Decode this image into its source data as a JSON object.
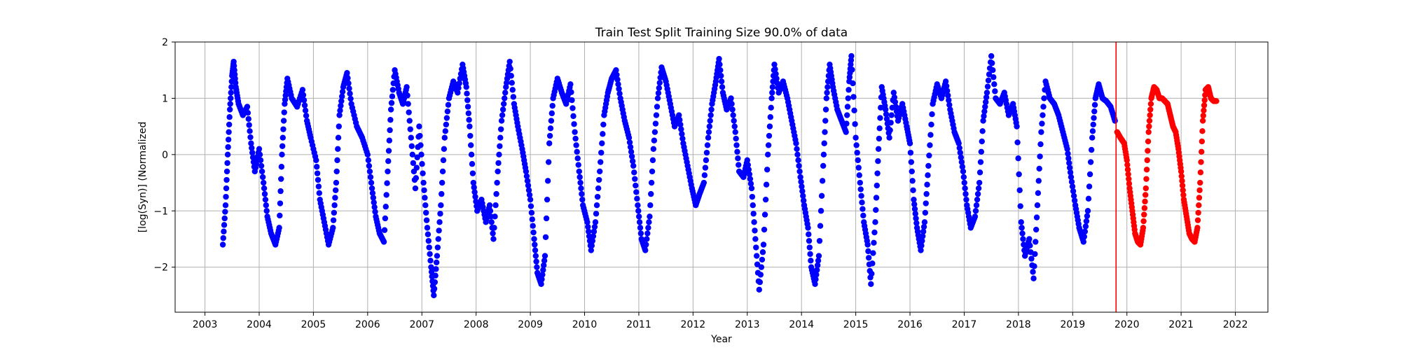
{
  "chart_data": {
    "type": "scatter",
    "title": "Train Test Split Training Size 90.0% of data",
    "xlabel": "Year",
    "ylabel": "[log(Syn)] (Normalized",
    "xlim": [
      2002.45,
      2022.6
    ],
    "ylim": [
      -2.8,
      2.0
    ],
    "grid": true,
    "x_ticks": [
      2003,
      2004,
      2005,
      2006,
      2007,
      2008,
      2009,
      2010,
      2011,
      2012,
      2013,
      2014,
      2015,
      2016,
      2017,
      2018,
      2019,
      2020,
      2021,
      2022
    ],
    "y_ticks": [
      -2,
      -1,
      0,
      1,
      2
    ],
    "split_line": {
      "x": 2019.8,
      "color": "#ff0000"
    },
    "colors": {
      "train": "#0000ff",
      "test": "#ff0000"
    },
    "series": [
      {
        "color": "#0000ff",
        "points": [
          [
            2003.33,
            -1.6
          ],
          [
            2003.38,
            -0.9
          ],
          [
            2003.42,
            0.0
          ],
          [
            2003.46,
            0.8
          ],
          [
            2003.5,
            1.4
          ],
          [
            2003.53,
            1.65
          ],
          [
            2003.57,
            1.2
          ],
          [
            2003.62,
            0.9
          ],
          [
            2003.7,
            0.7
          ],
          [
            2003.78,
            0.85
          ],
          [
            2003.85,
            0.2
          ],
          [
            2003.92,
            -0.3
          ],
          [
            2004.0,
            0.1
          ],
          [
            2004.08,
            -0.5
          ],
          [
            2004.15,
            -1.1
          ],
          [
            2004.22,
            -1.4
          ],
          [
            2004.3,
            -1.6
          ],
          [
            2004.37,
            -1.3
          ],
          [
            2004.42,
            0.0
          ],
          [
            2004.47,
            0.9
          ],
          [
            2004.52,
            1.35
          ],
          [
            2004.6,
            1.0
          ],
          [
            2004.7,
            0.85
          ],
          [
            2004.8,
            1.15
          ],
          [
            2004.88,
            0.6
          ],
          [
            2004.95,
            0.3
          ],
          [
            2005.05,
            -0.1
          ],
          [
            2005.12,
            -0.8
          ],
          [
            2005.2,
            -1.2
          ],
          [
            2005.28,
            -1.6
          ],
          [
            2005.36,
            -1.3
          ],
          [
            2005.42,
            -0.5
          ],
          [
            2005.48,
            0.7
          ],
          [
            2005.55,
            1.2
          ],
          [
            2005.62,
            1.45
          ],
          [
            2005.7,
            0.9
          ],
          [
            2005.8,
            0.5
          ],
          [
            2005.9,
            0.3
          ],
          [
            2006.0,
            0.0
          ],
          [
            2006.08,
            -0.6
          ],
          [
            2006.15,
            -1.1
          ],
          [
            2006.22,
            -1.4
          ],
          [
            2006.3,
            -1.55
          ],
          [
            2006.37,
            -0.3
          ],
          [
            2006.43,
            0.8
          ],
          [
            2006.5,
            1.5
          ],
          [
            2006.58,
            1.1
          ],
          [
            2006.65,
            0.9
          ],
          [
            2006.72,
            1.2
          ],
          [
            2006.8,
            0.3
          ],
          [
            2006.88,
            -0.6
          ],
          [
            2006.95,
            0.5
          ],
          [
            2007.03,
            -0.5
          ],
          [
            2007.1,
            -1.3
          ],
          [
            2007.17,
            -2.0
          ],
          [
            2007.22,
            -2.5
          ],
          [
            2007.28,
            -1.8
          ],
          [
            2007.35,
            -0.9
          ],
          [
            2007.42,
            0.3
          ],
          [
            2007.5,
            1.0
          ],
          [
            2007.58,
            1.3
          ],
          [
            2007.66,
            1.1
          ],
          [
            2007.75,
            1.6
          ],
          [
            2007.82,
            1.2
          ],
          [
            2007.88,
            0.5
          ],
          [
            2007.95,
            -0.5
          ],
          [
            2008.02,
            -1.0
          ],
          [
            2008.1,
            -0.8
          ],
          [
            2008.18,
            -1.2
          ],
          [
            2008.25,
            -0.9
          ],
          [
            2008.32,
            -1.5
          ],
          [
            2008.4,
            -0.3
          ],
          [
            2008.47,
            0.6
          ],
          [
            2008.55,
            1.2
          ],
          [
            2008.62,
            1.65
          ],
          [
            2008.7,
            0.9
          ],
          [
            2008.77,
            0.5
          ],
          [
            2008.85,
            0.1
          ],
          [
            2008.92,
            -0.3
          ],
          [
            2009.0,
            -0.8
          ],
          [
            2009.07,
            -1.5
          ],
          [
            2009.13,
            -2.1
          ],
          [
            2009.2,
            -2.3
          ],
          [
            2009.27,
            -1.8
          ],
          [
            2009.35,
            0.2
          ],
          [
            2009.42,
            1.0
          ],
          [
            2009.5,
            1.35
          ],
          [
            2009.58,
            1.1
          ],
          [
            2009.66,
            0.9
          ],
          [
            2009.74,
            1.25
          ],
          [
            2009.82,
            0.4
          ],
          [
            2009.9,
            -0.3
          ],
          [
            2009.97,
            -0.9
          ],
          [
            2010.05,
            -1.2
          ],
          [
            2010.12,
            -1.7
          ],
          [
            2010.2,
            -1.2
          ],
          [
            2010.28,
            -0.3
          ],
          [
            2010.36,
            0.7
          ],
          [
            2010.43,
            1.1
          ],
          [
            2010.5,
            1.35
          ],
          [
            2010.58,
            1.5
          ],
          [
            2010.66,
            1.0
          ],
          [
            2010.74,
            0.6
          ],
          [
            2010.82,
            0.3
          ],
          [
            2010.9,
            -0.2
          ],
          [
            2010.98,
            -0.9
          ],
          [
            2011.05,
            -1.5
          ],
          [
            2011.12,
            -1.7
          ],
          [
            2011.2,
            -1.1
          ],
          [
            2011.27,
            0.1
          ],
          [
            2011.35,
            1.0
          ],
          [
            2011.42,
            1.55
          ],
          [
            2011.5,
            1.3
          ],
          [
            2011.58,
            0.9
          ],
          [
            2011.66,
            0.5
          ],
          [
            2011.74,
            0.7
          ],
          [
            2011.82,
            0.2
          ],
          [
            2011.9,
            -0.2
          ],
          [
            2011.98,
            -0.6
          ],
          [
            2012.05,
            -0.9
          ],
          [
            2012.12,
            -0.7
          ],
          [
            2012.2,
            -0.5
          ],
          [
            2012.28,
            0.3
          ],
          [
            2012.35,
            0.9
          ],
          [
            2012.42,
            1.3
          ],
          [
            2012.48,
            1.7
          ],
          [
            2012.55,
            1.1
          ],
          [
            2012.62,
            0.8
          ],
          [
            2012.7,
            1.0
          ],
          [
            2012.78,
            0.4
          ],
          [
            2012.85,
            -0.3
          ],
          [
            2012.93,
            -0.4
          ],
          [
            2013.0,
            -0.1
          ],
          [
            2013.08,
            -0.6
          ],
          [
            2013.15,
            -1.5
          ],
          [
            2013.22,
            -2.4
          ],
          [
            2013.3,
            -1.6
          ],
          [
            2013.38,
            0.0
          ],
          [
            2013.45,
            1.0
          ],
          [
            2013.5,
            1.6
          ],
          [
            2013.58,
            1.1
          ],
          [
            2013.66,
            1.3
          ],
          [
            2013.74,
            1.0
          ],
          [
            2013.82,
            0.6
          ],
          [
            2013.9,
            0.2
          ],
          [
            2013.98,
            -0.4
          ],
          [
            2014.05,
            -0.9
          ],
          [
            2014.12,
            -1.3
          ],
          [
            2014.18,
            -2.0
          ],
          [
            2014.25,
            -2.3
          ],
          [
            2014.32,
            -1.8
          ],
          [
            2014.4,
            -0.2
          ],
          [
            2014.46,
            1.0
          ],
          [
            2014.52,
            1.6
          ],
          [
            2014.58,
            1.2
          ],
          [
            2014.66,
            0.8
          ],
          [
            2014.74,
            0.6
          ],
          [
            2014.82,
            0.4
          ],
          [
            2014.88,
            1.3
          ],
          [
            2014.92,
            1.75
          ],
          [
            2015.0,
            0.3
          ],
          [
            2015.08,
            -0.5
          ],
          [
            2015.15,
            -1.2
          ],
          [
            2015.22,
            -1.6
          ],
          [
            2015.28,
            -2.3
          ],
          [
            2015.36,
            -1.2
          ],
          [
            2015.42,
            0.1
          ],
          [
            2015.48,
            1.2
          ],
          [
            2015.55,
            0.8
          ],
          [
            2015.62,
            0.3
          ],
          [
            2015.7,
            1.1
          ],
          [
            2015.78,
            0.6
          ],
          [
            2015.86,
            0.9
          ],
          [
            2015.94,
            0.5
          ],
          [
            2016.0,
            0.2
          ],
          [
            2016.07,
            -0.8
          ],
          [
            2016.13,
            -1.3
          ],
          [
            2016.2,
            -1.7
          ],
          [
            2016.27,
            -1.2
          ],
          [
            2016.34,
            -0.2
          ],
          [
            2016.42,
            0.9
          ],
          [
            2016.5,
            1.25
          ],
          [
            2016.58,
            1.0
          ],
          [
            2016.66,
            1.3
          ],
          [
            2016.74,
            0.8
          ],
          [
            2016.82,
            0.4
          ],
          [
            2016.9,
            0.2
          ],
          [
            2016.98,
            -0.3
          ],
          [
            2017.05,
            -0.9
          ],
          [
            2017.12,
            -1.3
          ],
          [
            2017.2,
            -1.1
          ],
          [
            2017.28,
            -0.5
          ],
          [
            2017.35,
            0.6
          ],
          [
            2017.42,
            1.1
          ],
          [
            2017.5,
            1.75
          ],
          [
            2017.58,
            1.0
          ],
          [
            2017.66,
            0.9
          ],
          [
            2017.74,
            1.1
          ],
          [
            2017.82,
            0.7
          ],
          [
            2017.9,
            0.9
          ],
          [
            2017.97,
            0.5
          ],
          [
            2018.05,
            -1.2
          ],
          [
            2018.12,
            -1.8
          ],
          [
            2018.2,
            -1.5
          ],
          [
            2018.28,
            -2.2
          ],
          [
            2018.35,
            -0.9
          ],
          [
            2018.42,
            0.4
          ],
          [
            2018.5,
            1.3
          ],
          [
            2018.58,
            1.0
          ],
          [
            2018.66,
            0.9
          ],
          [
            2018.74,
            0.7
          ],
          [
            2018.82,
            0.4
          ],
          [
            2018.9,
            0.1
          ],
          [
            2018.97,
            -0.4
          ],
          [
            2019.05,
            -0.9
          ],
          [
            2019.12,
            -1.3
          ],
          [
            2019.2,
            -1.55
          ],
          [
            2019.28,
            -1.0
          ],
          [
            2019.36,
            0.3
          ],
          [
            2019.42,
            1.0
          ],
          [
            2019.48,
            1.25
          ],
          [
            2019.55,
            1.0
          ],
          [
            2019.62,
            0.95
          ],
          [
            2019.7,
            0.85
          ],
          [
            2019.78,
            0.6
          ]
        ]
      },
      {
        "color": "#ff0000",
        "points": [
          [
            2019.82,
            0.4
          ],
          [
            2019.88,
            0.3
          ],
          [
            2019.95,
            0.2
          ],
          [
            2020.0,
            -0.1
          ],
          [
            2020.05,
            -0.6
          ],
          [
            2020.1,
            -1.0
          ],
          [
            2020.15,
            -1.4
          ],
          [
            2020.2,
            -1.55
          ],
          [
            2020.25,
            -1.6
          ],
          [
            2020.3,
            -1.3
          ],
          [
            2020.35,
            -0.6
          ],
          [
            2020.4,
            0.4
          ],
          [
            2020.45,
            1.0
          ],
          [
            2020.5,
            1.2
          ],
          [
            2020.55,
            1.15
          ],
          [
            2020.6,
            1.0
          ],
          [
            2020.65,
            1.0
          ],
          [
            2020.7,
            0.95
          ],
          [
            2020.75,
            0.9
          ],
          [
            2020.8,
            0.7
          ],
          [
            2020.85,
            0.5
          ],
          [
            2020.9,
            0.4
          ],
          [
            2020.95,
            0.1
          ],
          [
            2021.0,
            -0.3
          ],
          [
            2021.05,
            -0.8
          ],
          [
            2021.1,
            -1.1
          ],
          [
            2021.15,
            -1.4
          ],
          [
            2021.2,
            -1.5
          ],
          [
            2021.25,
            -1.55
          ],
          [
            2021.3,
            -1.3
          ],
          [
            2021.35,
            -0.5
          ],
          [
            2021.4,
            0.6
          ],
          [
            2021.45,
            1.15
          ],
          [
            2021.5,
            1.2
          ],
          [
            2021.55,
            1.0
          ],
          [
            2021.6,
            0.95
          ],
          [
            2021.65,
            0.95
          ]
        ]
      }
    ]
  }
}
